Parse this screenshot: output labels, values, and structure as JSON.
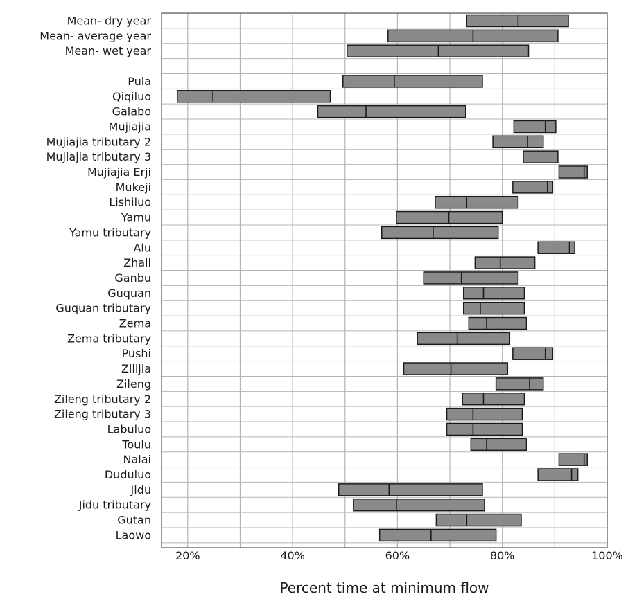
{
  "chart_data": {
    "type": "bar",
    "subtype": "floating-range-with-median",
    "title": "",
    "xlabel": "Percent time at minimum flow",
    "ylabel": "",
    "xlim": [
      15,
      100
    ],
    "x_ticks": [
      20,
      30,
      40,
      50,
      60,
      70,
      80,
      90,
      100
    ],
    "x_tick_labels": [
      "20%",
      "",
      "40%",
      "",
      "60%",
      "",
      "80%",
      "",
      "100%"
    ],
    "grid": true,
    "legend": "none",
    "colors": {
      "bar_fill": "#8a8a8a",
      "bar_stroke": "#1a1a1a",
      "grid": "#b4b4b4",
      "axis": "#555555"
    },
    "categories": [
      "Mean- dry year",
      "Mean- average year",
      "Mean- wet year",
      "",
      "Pula",
      "Qiqiluo",
      "Galabo",
      "Mujiajia",
      "Mujiajia tributary 2",
      "Mujiajia tributary 3",
      "Mujiajia Erji",
      "Mukeji",
      "Lishiluo",
      "Yamu",
      "Yamu tributary",
      "Alu",
      "Zhali",
      "Ganbu",
      "Guquan",
      "Guquan tributary",
      "Zema",
      "Zema tributary",
      "Pushi",
      "Zilijia",
      "Zileng",
      "Zileng tributary 2",
      "Zileng tributary 3",
      "Labuluo",
      "Toulu",
      "Nalai",
      "Duduluo",
      "Jidu",
      "Jidu tributary",
      "Gutan",
      "Laowo"
    ],
    "series": [
      {
        "low": [
          73.2,
          58.2,
          50.4,
          null,
          49.6,
          18.0,
          44.8,
          82.2,
          78.2,
          84.0,
          90.8,
          82.0,
          67.2,
          59.8,
          57.0,
          86.8,
          74.8,
          65.0,
          72.6,
          72.6,
          73.6,
          63.8,
          82.0,
          61.2,
          78.8,
          72.4,
          69.4,
          69.4,
          74.0,
          90.8,
          86.8,
          48.8,
          51.6,
          67.4,
          56.6
        ],
        "median": [
          83.0,
          74.4,
          67.8,
          null,
          59.4,
          24.8,
          54.0,
          88.2,
          84.8,
          null,
          95.6,
          88.6,
          73.2,
          69.8,
          66.8,
          92.8,
          79.6,
          72.2,
          76.4,
          75.8,
          77.0,
          71.4,
          88.2,
          70.2,
          85.2,
          76.4,
          74.4,
          74.4,
          77.0,
          95.6,
          93.2,
          58.4,
          59.8,
          73.2,
          66.4
        ],
        "high": [
          92.6,
          90.6,
          85.0,
          null,
          76.2,
          47.2,
          73.0,
          90.2,
          87.8,
          90.6,
          96.2,
          89.6,
          83.0,
          80.0,
          79.2,
          93.8,
          86.2,
          83.0,
          84.2,
          84.2,
          84.6,
          81.4,
          89.6,
          81.0,
          87.8,
          84.2,
          83.8,
          83.8,
          84.6,
          96.2,
          94.4,
          76.2,
          76.6,
          83.6,
          78.8
        ]
      }
    ]
  }
}
